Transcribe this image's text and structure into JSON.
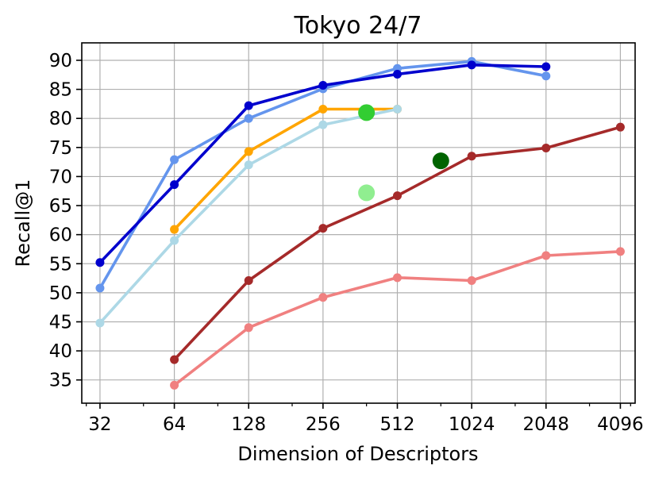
{
  "chart_data": {
    "type": "line",
    "title": "Tokyo 24/7",
    "xlabel": "Dimension of Descriptors",
    "ylabel": "Recall@1",
    "x_scale": "log2",
    "xlim": [
      27,
      4700
    ],
    "ylim": [
      31,
      93
    ],
    "x_ticks": [
      32,
      64,
      128,
      256,
      512,
      1024,
      2048,
      4096
    ],
    "x_tick_labels": [
      "32",
      "64",
      "128",
      "256",
      "512",
      "1024",
      "2048",
      "4096"
    ],
    "y_ticks": [
      35,
      40,
      45,
      50,
      55,
      60,
      65,
      70,
      75,
      80,
      85,
      90
    ],
    "y_tick_labels": [
      "35",
      "40",
      "45",
      "50",
      "55",
      "60",
      "65",
      "70",
      "75",
      "80",
      "85",
      "90"
    ],
    "grid": true,
    "series": [
      {
        "color": "#6495ED",
        "x": [
          32,
          64,
          128,
          256,
          512,
          1024,
          2048
        ],
        "y": [
          50.8,
          72.9,
          80.0,
          85.1,
          88.6,
          89.8,
          87.3
        ]
      },
      {
        "color": "#0000CD",
        "x": [
          32,
          64,
          128,
          256,
          512,
          1024,
          2048
        ],
        "y": [
          55.2,
          68.6,
          82.2,
          85.7,
          87.6,
          89.2,
          88.9
        ]
      },
      {
        "color": "#FFA500",
        "x": [
          64,
          128,
          256,
          512
        ],
        "y": [
          60.9,
          74.3,
          81.6,
          81.6
        ]
      },
      {
        "color": "#ADD8E6",
        "x": [
          32,
          64,
          128,
          256,
          512
        ],
        "y": [
          44.8,
          59.0,
          72.0,
          78.9,
          81.6
        ]
      },
      {
        "color": "#A52A2A",
        "x": [
          64,
          128,
          256,
          512,
          1024,
          2048,
          4096
        ],
        "y": [
          38.5,
          52.1,
          61.1,
          66.7,
          73.5,
          74.9,
          78.5
        ]
      },
      {
        "color": "#F08080",
        "x": [
          64,
          128,
          256,
          512,
          1024,
          2048,
          4096
        ],
        "y": [
          34.1,
          44.0,
          49.2,
          52.6,
          52.1,
          56.4,
          57.1
        ]
      }
    ],
    "points": [
      {
        "color": "#32CD32",
        "x": 384,
        "y": 81.0
      },
      {
        "color": "#90EE90",
        "x": 384,
        "y": 67.2
      },
      {
        "color": "#006400",
        "x": 768,
        "y": 72.7
      }
    ]
  }
}
